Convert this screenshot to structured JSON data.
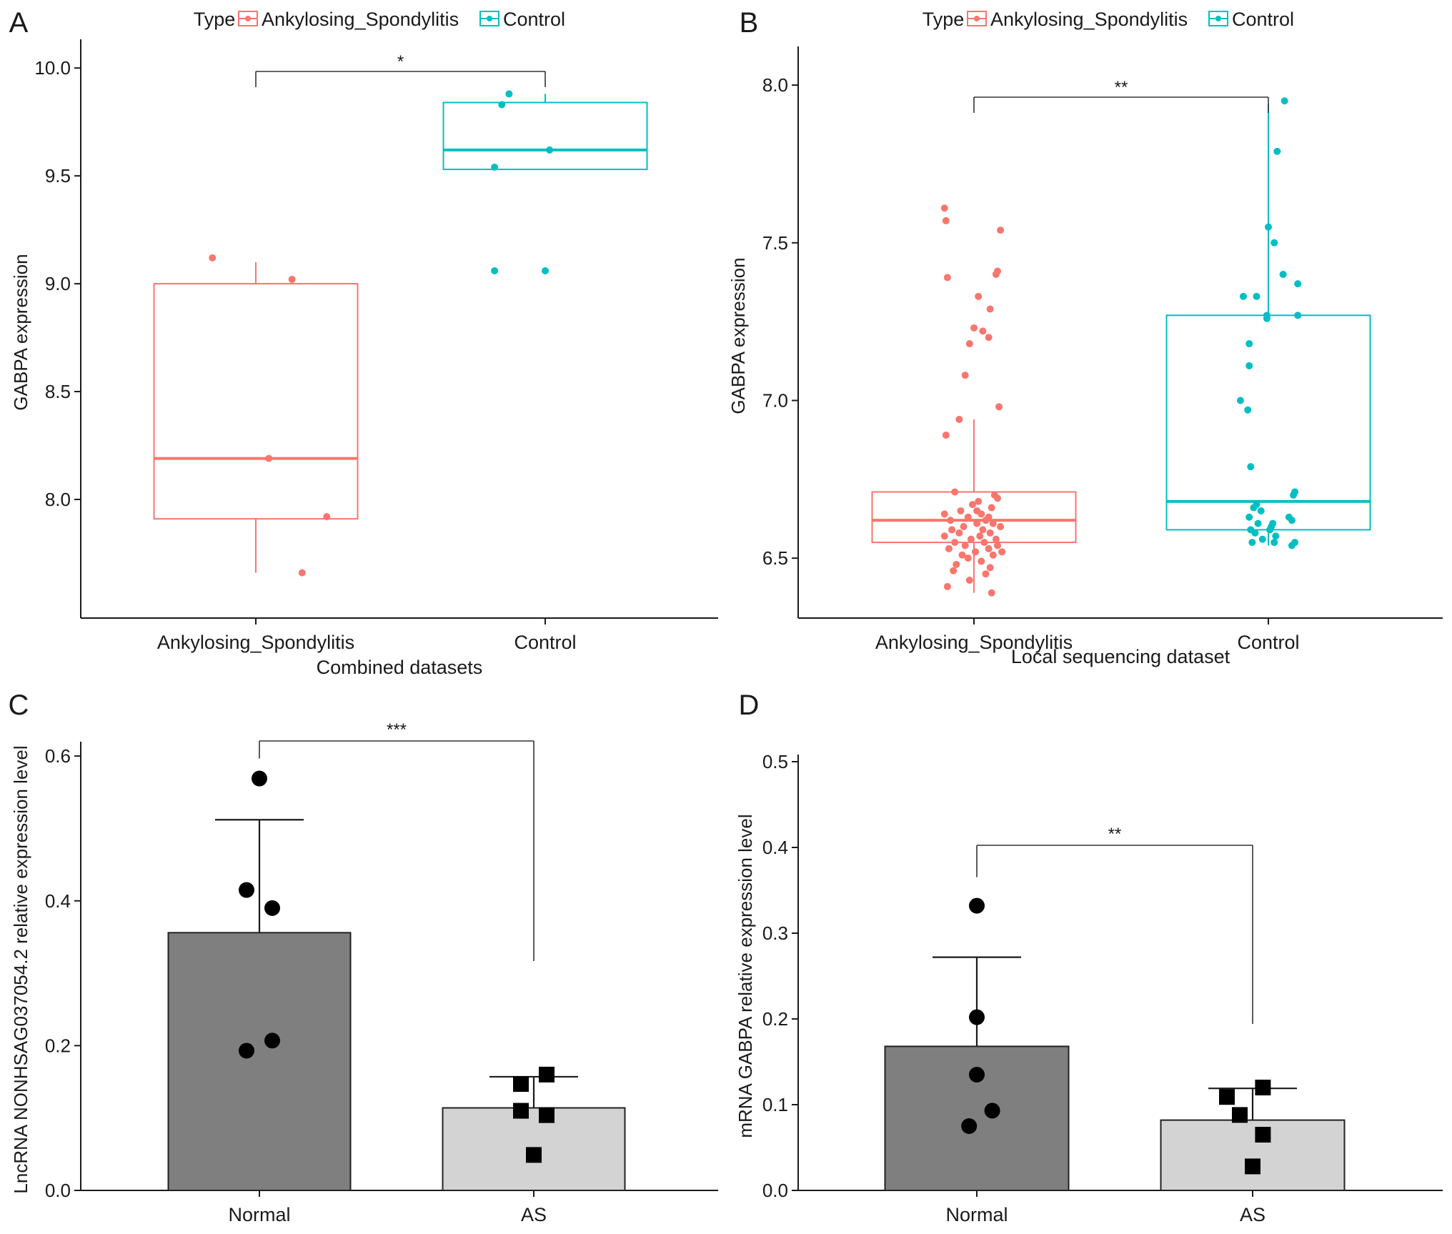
{
  "colors": {
    "as": "#F8766D",
    "control": "#00BFC4",
    "bar_dark": "#7f7f7f",
    "bar_light": "#d3d3d3",
    "ink": "#1a1a1a"
  },
  "chart_data": [
    {
      "panel": "A",
      "type": "box",
      "title": "",
      "legend": {
        "title": "Type",
        "position": "top",
        "entries": [
          "Ankylosing_Spondylitis",
          "Control"
        ]
      },
      "categories": [
        "Ankylosing_Spondylitis",
        "Control"
      ],
      "xlabel": "Combined datasets",
      "ylabel": "GABPA expression",
      "ylim": [
        7.45,
        10.1
      ],
      "yticks": [
        8.0,
        8.5,
        9.0,
        9.5,
        10.0
      ],
      "ytick_labels": [
        "8.0",
        "8.5",
        "9.0",
        "9.5",
        "10.0"
      ],
      "boxes": [
        {
          "category": "Ankylosing_Spondylitis",
          "whisker_low": 7.66,
          "q1": 7.91,
          "median": 8.19,
          "q3": 9.0,
          "whisker_high": 9.1
        },
        {
          "category": "Control",
          "whisker_low": 9.53,
          "q1": 9.53,
          "median": 9.62,
          "q3": 9.84,
          "whisker_high": 9.88
        }
      ],
      "points": [
        {
          "category": "Ankylosing_Spondylitis",
          "y": [
            9.12,
            9.02,
            8.19,
            7.92,
            7.66
          ],
          "jitter": [
            -0.3,
            0.25,
            0.09,
            0.49,
            0.32
          ]
        },
        {
          "category": "Control",
          "y": [
            9.88,
            9.83,
            9.62,
            9.54,
            9.06,
            9.06
          ],
          "jitter": [
            -0.25,
            -0.3,
            0.03,
            -0.35,
            -0.35,
            0.0
          ]
        }
      ],
      "significance": "*"
    },
    {
      "panel": "B",
      "type": "box",
      "title": "",
      "legend": {
        "title": "Type",
        "position": "top",
        "entries": [
          "Ankylosing_Spondylitis",
          "Control"
        ]
      },
      "categories": [
        "Ankylosing_Spondylitis",
        "Control"
      ],
      "xlabel": "Local sequencing dataset",
      "ylabel": "GABPA expression",
      "ylim": [
        6.31,
        8.1
      ],
      "yticks": [
        6.5,
        7.0,
        7.5,
        8.0
      ],
      "ytick_labels": [
        "6.5",
        "7.0",
        "7.5",
        "8.0"
      ],
      "boxes": [
        {
          "category": "Ankylosing_Spondylitis",
          "whisker_low": 6.39,
          "q1": 6.55,
          "median": 6.62,
          "q3": 6.71,
          "whisker_high": 6.94
        },
        {
          "category": "Control",
          "whisker_low": 6.54,
          "q1": 6.59,
          "median": 6.68,
          "q3": 7.27,
          "whisker_high": 7.94
        }
      ],
      "points": [
        {
          "category": "Ankylosing_Spondylitis",
          "y": [
            7.61,
            7.57,
            7.54,
            7.41,
            7.4,
            7.39,
            7.33,
            7.29,
            7.23,
            7.22,
            7.2,
            7.18,
            7.08,
            6.98,
            6.94,
            6.89,
            6.71,
            6.7,
            6.69,
            6.68,
            6.67,
            6.66,
            6.65,
            6.65,
            6.64,
            6.64,
            6.63,
            6.63,
            6.62,
            6.62,
            6.61,
            6.61,
            6.6,
            6.6,
            6.59,
            6.59,
            6.58,
            6.58,
            6.57,
            6.57,
            6.56,
            6.56,
            6.55,
            6.55,
            6.54,
            6.54,
            6.53,
            6.53,
            6.52,
            6.52,
            6.51,
            6.51,
            6.5,
            6.49,
            6.48,
            6.47,
            6.46,
            6.45,
            6.43,
            6.41,
            6.39
          ],
          "jitter": [
            -0.2,
            -0.19,
            0.18,
            0.16,
            0.15,
            -0.18,
            0.03,
            0.11,
            0.0,
            0.06,
            0.1,
            -0.03,
            -0.06,
            0.17,
            -0.1,
            -0.19,
            -0.13,
            0.14,
            0.16,
            0.03,
            -0.01,
            0.12,
            -0.09,
            0.02,
            0.05,
            -0.2,
            0.1,
            -0.04,
            -0.16,
            0.08,
            0.13,
            0.02,
            -0.07,
            0.18,
            -0.15,
            0.06,
            -0.1,
            0.11,
            -0.2,
            0.04,
            -0.02,
            0.15,
            -0.13,
            0.07,
            -0.06,
            0.16,
            -0.17,
            0.1,
            0.01,
            0.19,
            -0.08,
            0.13,
            -0.04,
            0.05,
            -0.12,
            0.11,
            -0.14,
            0.08,
            -0.03,
            -0.18,
            0.12
          ],
          "note": ""
        },
        {
          "category": "Control",
          "y": [
            7.95,
            7.79,
            7.55,
            7.5,
            7.4,
            7.37,
            7.33,
            7.33,
            7.27,
            7.27,
            7.26,
            7.18,
            7.11,
            7.0,
            6.97,
            6.79,
            6.71,
            6.7,
            6.67,
            6.66,
            6.65,
            6.63,
            6.63,
            6.62,
            6.61,
            6.61,
            6.6,
            6.59,
            6.59,
            6.58,
            6.57,
            6.56,
            6.55,
            6.55,
            6.55,
            6.54
          ],
          "jitter": [
            0.11,
            0.06,
            0.0,
            0.04,
            0.1,
            0.2,
            -0.17,
            -0.08,
            -0.01,
            0.2,
            -0.01,
            -0.13,
            -0.13,
            -0.19,
            -0.14,
            -0.12,
            0.18,
            0.17,
            -0.08,
            -0.1,
            -0.05,
            -0.13,
            0.14,
            0.16,
            0.03,
            -0.07,
            0.02,
            -0.12,
            0.01,
            -0.09,
            0.05,
            -0.04,
            -0.11,
            0.04,
            0.18,
            0.16
          ],
          "note": ""
        }
      ],
      "significance": "**"
    },
    {
      "panel": "C",
      "type": "bar",
      "title": "",
      "categories": [
        "Normal",
        "AS"
      ],
      "xlabel": "",
      "ylabel": "LncRNA NONHSAG037054.2 relative expression level",
      "ylim": [
        0,
        0.61
      ],
      "yticks": [
        0.0,
        0.2,
        0.4,
        0.6
      ],
      "ytick_labels": [
        "0.0",
        "0.2",
        "0.4",
        "0.6"
      ],
      "values": [
        0.356,
        0.114
      ],
      "errors": [
        0.156,
        0.043
      ],
      "points": [
        {
          "category": "Normal",
          "marker": "circle",
          "y": [
            0.569,
            0.415,
            0.39,
            0.207,
            0.193
          ],
          "jitter": [
            0.0,
            -0.05,
            0.05,
            0.05,
            -0.05
          ]
        },
        {
          "category": "AS",
          "marker": "square",
          "y": [
            0.16,
            0.147,
            0.11,
            0.104,
            0.049
          ],
          "jitter": [
            0.05,
            -0.05,
            -0.05,
            0.05,
            0.0
          ]
        }
      ],
      "significance": "***"
    },
    {
      "panel": "D",
      "type": "bar",
      "title": "",
      "categories": [
        "Normal",
        "AS"
      ],
      "xlabel": "",
      "ylabel": "mRNA GABPA relative expression level",
      "ylim": [
        0,
        0.5
      ],
      "yticks": [
        0.0,
        0.1,
        0.2,
        0.3,
        0.4,
        0.5
      ],
      "ytick_labels": [
        "0.0",
        "0.1",
        "0.2",
        "0.3",
        "0.4",
        "0.5"
      ],
      "values": [
        0.168,
        0.082
      ],
      "errors": [
        0.104,
        0.037
      ],
      "points": [
        {
          "category": "Normal",
          "marker": "circle",
          "y": [
            0.332,
            0.202,
            0.135,
            0.093,
            0.075
          ],
          "jitter": [
            0.0,
            0.0,
            0.0,
            0.06,
            -0.03
          ]
        },
        {
          "category": "AS",
          "marker": "square",
          "y": [
            0.12,
            0.109,
            0.088,
            0.065,
            0.028
          ],
          "jitter": [
            0.04,
            -0.1,
            -0.05,
            0.04,
            0.0
          ]
        }
      ],
      "significance": "**"
    }
  ]
}
